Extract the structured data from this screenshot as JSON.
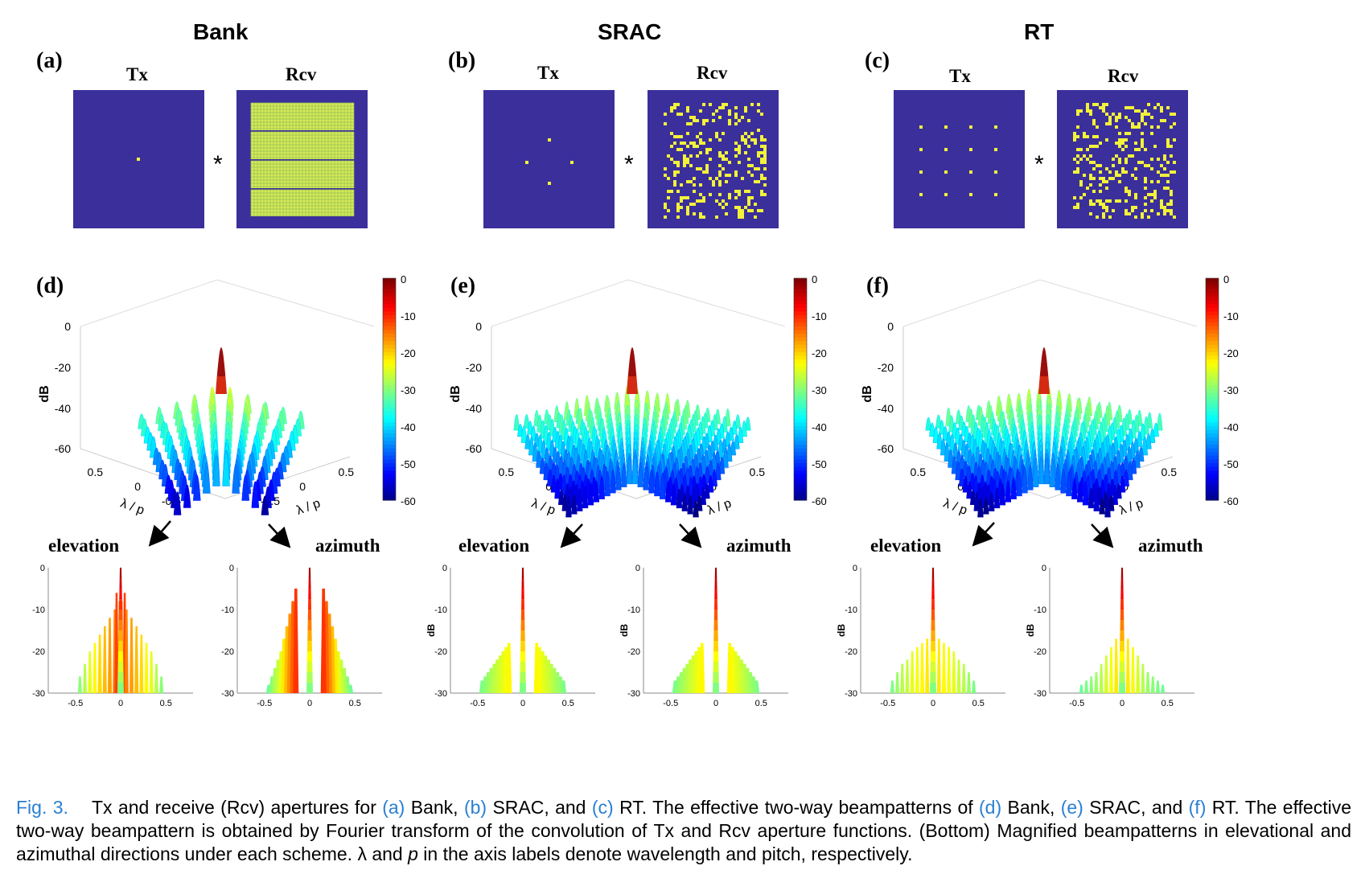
{
  "schemes": [
    {
      "title": "Bank",
      "panel_top": "(a)",
      "panel_bottom": "(d)",
      "tx": "Tx",
      "rcv": "Rcv",
      "conv": "*",
      "elevation": "elevation",
      "azimuth": "azimuth"
    },
    {
      "title": "SRAC",
      "panel_top": "(b)",
      "panel_bottom": "(e)",
      "tx": "Tx",
      "rcv": "Rcv",
      "conv": "*",
      "elevation": "elevation",
      "azimuth": "azimuth"
    },
    {
      "title": "RT",
      "panel_top": "(c)",
      "panel_bottom": "(f)",
      "tx": "Tx",
      "rcv": "Rcv",
      "conv": "*",
      "elevation": "elevation",
      "azimuth": "azimuth"
    }
  ],
  "colors": {
    "aperture_bg": "#3b2f9b",
    "element": "#f2f23a",
    "caption_ref": "#2a7fd4"
  },
  "chart_data": [
    {
      "type": "surface",
      "scheme": "Bank",
      "zlabel": "dB",
      "zticks": [
        "0",
        "-20",
        "-40",
        "-60"
      ],
      "xlabel": "λ / p",
      "ylabel": "λ / p",
      "xticks": [
        "0.5",
        "0",
        "-0.5"
      ],
      "yticks": [
        "0.5",
        "0",
        "-0.5"
      ],
      "colorbar": [
        "0",
        "-10",
        "-20",
        "-30",
        "-40",
        "-50",
        "-60"
      ],
      "zlim": [
        -60,
        0
      ]
    },
    {
      "type": "surface",
      "scheme": "SRAC",
      "zlabel": "dB",
      "zticks": [
        "0",
        "-20",
        "-40",
        "-60"
      ],
      "xlabel": "λ / p",
      "ylabel": "λ / p",
      "xticks": [
        "0.5",
        "0",
        "-0.5"
      ],
      "yticks": [
        "0.5",
        "0",
        "-0.5"
      ],
      "colorbar": [
        "0",
        "-10",
        "-20",
        "-30",
        "-40",
        "-50",
        "-60"
      ],
      "zlim": [
        -60,
        0
      ]
    },
    {
      "type": "surface",
      "scheme": "RT",
      "zlabel": "dB",
      "zticks": [
        "0",
        "-20",
        "-40",
        "-60"
      ],
      "xlabel": "λ / p",
      "ylabel": "λ / p",
      "xticks": [
        "0.5",
        "0",
        "-0.5"
      ],
      "yticks": [
        "0.5",
        "0",
        "-0.5"
      ],
      "colorbar": [
        "0",
        "-10",
        "-20",
        "-30",
        "-40",
        "-50",
        "-60"
      ],
      "zlim": [
        -60,
        0
      ]
    },
    {
      "type": "bar",
      "scheme": "Bank",
      "direction": "elevation",
      "ylabel": "",
      "yticks": [
        "0",
        "-10",
        "-20",
        "-30"
      ],
      "xticks": [
        "-0.5",
        "0",
        "0.5"
      ],
      "ylim": [
        -30,
        0
      ],
      "sidelobes": [
        -26,
        -23,
        -20,
        -18,
        -16,
        -14,
        -12,
        -10,
        -8,
        -6
      ]
    },
    {
      "type": "bar",
      "scheme": "Bank",
      "direction": "azimuth",
      "ylabel": "",
      "yticks": [
        "0",
        "-10",
        "-20",
        "-30"
      ],
      "xticks": [
        "-0.5",
        "0",
        "0.5"
      ],
      "ylim": [
        -30,
        0
      ],
      "sidelobes": [
        -28,
        -26,
        -24,
        -22,
        -20,
        -17,
        -14,
        -11,
        -8,
        -5
      ]
    },
    {
      "type": "bar",
      "scheme": "SRAC",
      "direction": "elevation",
      "ylabel": "dB",
      "yticks": [
        "0",
        "-10",
        "-20",
        "-30"
      ],
      "xticks": [
        "-0.5",
        "0",
        "0.5"
      ],
      "ylim": [
        -30,
        0
      ],
      "sidelobes": [
        -27,
        -26,
        -25,
        -24,
        -23,
        -22,
        -21,
        -20,
        -19,
        -18
      ]
    },
    {
      "type": "bar",
      "scheme": "SRAC",
      "direction": "azimuth",
      "ylabel": "dB",
      "yticks": [
        "0",
        "-10",
        "-20",
        "-30"
      ],
      "xticks": [
        "-0.5",
        "0",
        "0.5"
      ],
      "ylim": [
        -30,
        0
      ],
      "sidelobes": [
        -27,
        -26,
        -25,
        -24,
        -23,
        -22,
        -21,
        -20,
        -19,
        -18
      ]
    },
    {
      "type": "bar",
      "scheme": "RT",
      "direction": "elevation",
      "ylabel": "dB",
      "yticks": [
        "0",
        "-10",
        "-20",
        "-30"
      ],
      "xticks": [
        "-0.5",
        "0",
        "0.5"
      ],
      "ylim": [
        -30,
        0
      ],
      "sidelobes": [
        -27,
        -25,
        -23,
        -22,
        -20,
        -19,
        -18,
        -17
      ]
    },
    {
      "type": "bar",
      "scheme": "RT",
      "direction": "azimuth",
      "ylabel": "dB",
      "yticks": [
        "0",
        "-10",
        "-20",
        "-30"
      ],
      "xticks": [
        "-0.5",
        "0",
        "0.5"
      ],
      "ylim": [
        -30,
        0
      ],
      "sidelobes": [
        -28,
        -27,
        -26,
        -25,
        -23,
        -21,
        -19,
        -17
      ]
    }
  ],
  "caption": {
    "fig": "Fig. 3.",
    "t1": "Tx and receive (Rcv) apertures for",
    "ra": "(a)",
    "t2": "Bank,",
    "rb": "(b)",
    "t3": "SRAC, and",
    "rc": "(c)",
    "t4": "RT. The effective two-way beampatterns of",
    "rd": "(d)",
    "t5": "Bank,",
    "re": "(e)",
    "t6": "SRAC, and",
    "rf": "(f)",
    "t7": "RT. The effective two-way beampattern is obtained by Fourier transform of the convolution of Tx and Rcv aperture functions. (Bottom) Magnified beampatterns in elevational and azimuthal directions under each scheme.",
    "t8": "λ and",
    "t9": "p",
    "t10": "in the axis labels denote wavelength and pitch, respectively."
  }
}
